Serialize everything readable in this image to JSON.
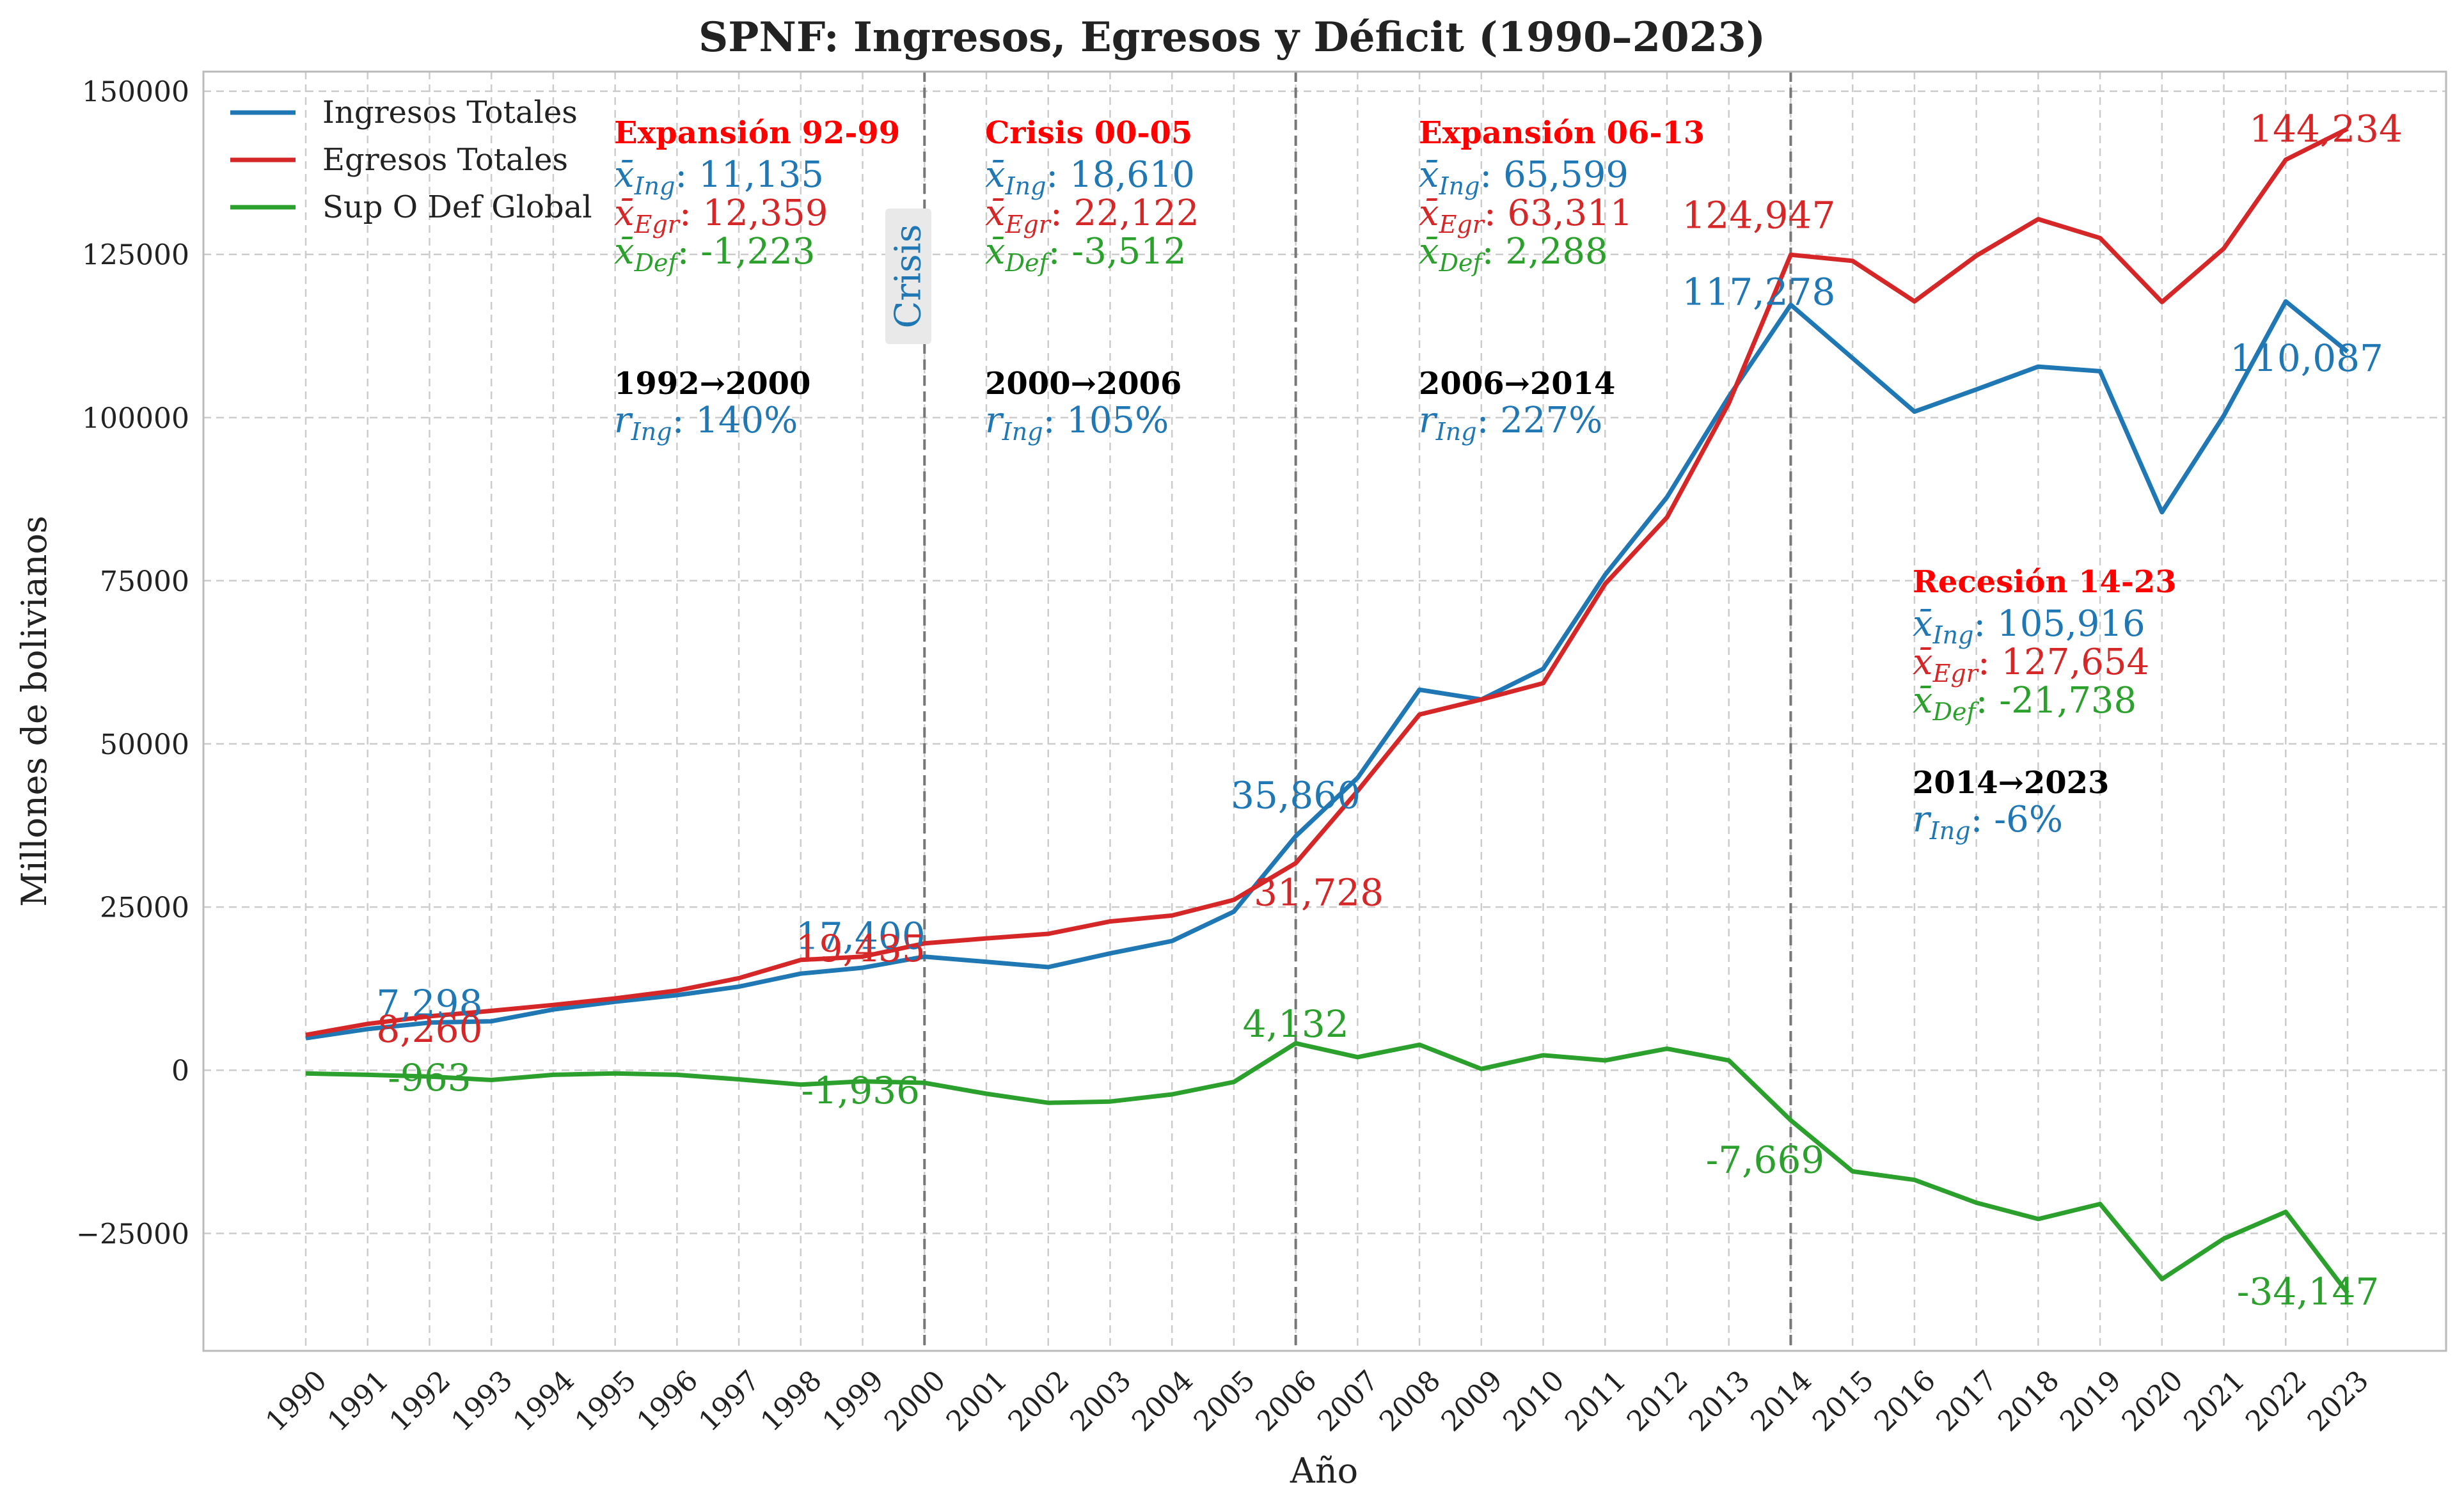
{
  "chart_data": {
    "type": "line",
    "title": "SPNF: Ingresos, Egresos y Déficit (1990–2023)",
    "xlabel": "Año",
    "ylabel": "Millones de bolivianos",
    "ylim": [
      -43000,
      153000
    ],
    "yticks": [
      -25000,
      0,
      25000,
      50000,
      75000,
      100000,
      125000,
      150000
    ],
    "ytick_labels": [
      "−25000",
      "0",
      "25000",
      "50000",
      "75000",
      "100000",
      "125000",
      "150000"
    ],
    "grid": true,
    "legend_position": "top-left",
    "x": [
      1990,
      1991,
      1992,
      1993,
      1994,
      1995,
      1996,
      1997,
      1998,
      1999,
      2000,
      2001,
      2002,
      2003,
      2004,
      2005,
      2006,
      2007,
      2008,
      2009,
      2010,
      2011,
      2012,
      2013,
      2014,
      2015,
      2016,
      2017,
      2018,
      2019,
      2020,
      2021,
      2022,
      2023
    ],
    "series": [
      {
        "name": "Ingresos Totales",
        "color": "#1f77b4",
        "values": [
          4900,
          6300,
          7298,
          7500,
          9300,
          10500,
          11500,
          12800,
          14800,
          15700,
          17400,
          16600,
          15800,
          17900,
          19800,
          24300,
          35860,
          44800,
          58300,
          56800,
          61500,
          75900,
          87800,
          103200,
          117278,
          109100,
          100900,
          104300,
          107800,
          107100,
          85500,
          100300,
          117800,
          110087
        ]
      },
      {
        "name": "Egresos Totales",
        "color": "#d62728",
        "values": [
          5400,
          7100,
          8260,
          9100,
          10000,
          11000,
          12200,
          14100,
          16900,
          17400,
          19435,
          20200,
          20900,
          22800,
          23700,
          26100,
          31728,
          42800,
          54500,
          56800,
          59300,
          74500,
          84700,
          102200,
          124947,
          124000,
          117800,
          124800,
          130400,
          127500,
          117700,
          125900,
          139500,
          144234
        ]
      },
      {
        "name": "Sup O Def Global",
        "color": "#2ca02c",
        "values": [
          -500,
          -700,
          -963,
          -1500,
          -700,
          -500,
          -700,
          -1400,
          -2200,
          -1700,
          -1936,
          -3600,
          -5000,
          -4800,
          -3700,
          -1800,
          4132,
          2000,
          3900,
          200,
          2300,
          1500,
          3300,
          1500,
          -7669,
          -15500,
          -16800,
          -20300,
          -22800,
          -20500,
          -32000,
          -25800,
          -21700,
          -34147
        ]
      }
    ],
    "period_lines": [
      2000,
      2006,
      2014
    ],
    "data_labels": [
      {
        "series": 0,
        "year": 1992,
        "text": "7,298"
      },
      {
        "series": 1,
        "year": 1992,
        "text": "8,260"
      },
      {
        "series": 2,
        "year": 1992,
        "text": "-963"
      },
      {
        "series": 0,
        "year": 2000,
        "text": "17,400"
      },
      {
        "series": 1,
        "year": 2000,
        "text": "19,435"
      },
      {
        "series": 2,
        "year": 2000,
        "text": "-1,936"
      },
      {
        "series": 0,
        "year": 2006,
        "text": "35,860"
      },
      {
        "series": 1,
        "year": 2006,
        "text": "31,728"
      },
      {
        "series": 2,
        "year": 2006,
        "text": "4,132"
      },
      {
        "series": 1,
        "year": 2014,
        "text": "124,947"
      },
      {
        "series": 0,
        "year": 2014,
        "text": "117,278"
      },
      {
        "series": 2,
        "year": 2014,
        "text": "-7,669"
      },
      {
        "series": 1,
        "year": 2023,
        "text": "144,234"
      },
      {
        "series": 0,
        "year": 2023,
        "text": "110,087"
      },
      {
        "series": 2,
        "year": 2023,
        "text": "-34,147"
      }
    ],
    "periods": [
      {
        "name": "Expansión 92-99",
        "mean_ing": "11,135",
        "mean_egr": "12,359",
        "mean_def": "-1,223",
        "range": "1992→2000",
        "growth_ing": "140%"
      },
      {
        "name": "Crisis 00-05",
        "mean_ing": "18,610",
        "mean_egr": "22,122",
        "mean_def": "-3,512",
        "range": "2000→2006",
        "growth_ing": "105%"
      },
      {
        "name": "Expansión 06-13",
        "mean_ing": "65,599",
        "mean_egr": "63,311",
        "mean_def": "2,288",
        "range": "2006→2014",
        "growth_ing": "227%"
      },
      {
        "name": "Recesión 14-23",
        "mean_ing": "105,916",
        "mean_egr": "127,654",
        "mean_def": "-21,738",
        "range": "2014→2023",
        "growth_ing": "-6%"
      }
    ],
    "crisis_label": "Crisis"
  }
}
